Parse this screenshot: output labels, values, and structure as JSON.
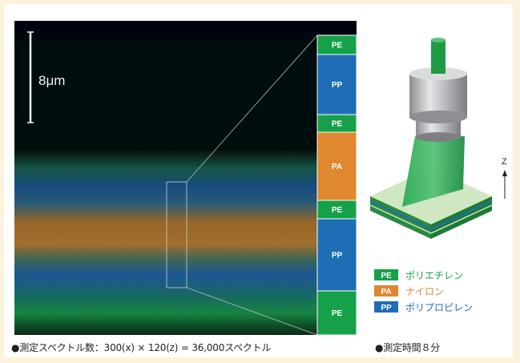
{
  "image": {
    "scale_bar_label": "8μm",
    "layers": [
      {
        "code": "PE",
        "color": "#17a04a"
      },
      {
        "code": "PP",
        "color": "#1f6db5"
      },
      {
        "code": "PE",
        "color": "#17a04a"
      },
      {
        "code": "PA",
        "color": "#e0882f"
      },
      {
        "code": "PE",
        "color": "#17a04a"
      },
      {
        "code": "PP",
        "color": "#1f6db5"
      },
      {
        "code": "PE",
        "color": "#17a04a"
      }
    ]
  },
  "schematic": {
    "axis_label": "Z"
  },
  "legend": [
    {
      "code": "PE",
      "label": "ポリエチレン",
      "color": "#17a04a"
    },
    {
      "code": "PA",
      "label": "ナイロン",
      "color": "#e0882f"
    },
    {
      "code": "PP",
      "label": "ポリプロピレン",
      "color": "#1f6db5"
    }
  ],
  "captions": {
    "spectra": "●測定スペクトル数：300(x) × 120(z) = 36,000スペクトル",
    "time": "●測定時間８分"
  },
  "colors": {
    "background": "#fbf3dc",
    "image_bg": "#050608",
    "green": "#17a04a",
    "blue": "#1f6db5",
    "orange": "#e0882f"
  }
}
